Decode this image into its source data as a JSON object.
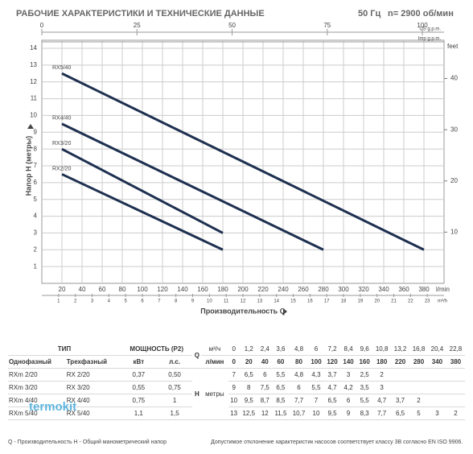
{
  "header": {
    "title": "РАБОЧИЕ ХАРАКТЕРИСТИКИ И ТЕХНИЧЕСКИЕ ДАННЫЕ",
    "frequency": "50 Гц",
    "speed": "n= 2900 об/мин"
  },
  "chart_data": {
    "type": "line",
    "x_label": "Производительность Q",
    "y_label": "Напор H (метры)",
    "x_unit": "l/min",
    "xlim": [
      0,
      400
    ],
    "xticks": [
      20,
      40,
      60,
      80,
      100,
      120,
      140,
      160,
      180,
      200,
      220,
      240,
      260,
      280,
      300,
      320,
      340,
      360,
      380
    ],
    "ylim": [
      0,
      14
    ],
    "yticks": [
      1,
      2,
      3,
      4,
      5,
      6,
      7,
      8,
      9,
      10,
      11,
      12,
      13,
      14
    ],
    "y2_label": "feet",
    "y2lim": [
      0,
      45.9
    ],
    "y2ticks": [
      10,
      20,
      30,
      40
    ],
    "us_gpm": {
      "label": "US g.p.m.",
      "lim": [
        0,
        105.7
      ],
      "ticks": [
        0,
        25,
        50,
        75,
        100
      ]
    },
    "imp_gpm": {
      "label": "Imp g.p.m."
    },
    "m3h": {
      "label": "m³/h",
      "lim": [
        0,
        24
      ],
      "ticks": [
        1,
        2,
        3,
        4,
        5,
        6,
        7,
        8,
        9,
        10,
        11,
        12,
        13,
        14,
        15,
        16,
        17,
        18,
        19,
        20,
        21,
        22,
        23
      ]
    },
    "grid": true,
    "series": [
      {
        "name": "RX5/40",
        "color": "#1e3050",
        "x": [
          20,
          380
        ],
        "values": [
          12.5,
          2
        ]
      },
      {
        "name": "RX4/40",
        "color": "#1e3050",
        "x": [
          20,
          280
        ],
        "values": [
          9.5,
          2
        ]
      },
      {
        "name": "RX3/20",
        "color": "#1e3050",
        "x": [
          20,
          180
        ],
        "values": [
          8,
          3
        ]
      },
      {
        "name": "RX2/20",
        "color": "#1e3050",
        "x": [
          20,
          180
        ],
        "values": [
          6.5,
          2
        ]
      }
    ]
  },
  "table": {
    "type_header": "ТИП",
    "power_header": "МОЩНОСТЬ (P2)",
    "q_header": "Q",
    "m3h_header": "м³/ч",
    "lmin_header": "л/мин",
    "single_header": "Однофазный",
    "three_header": "Трехфазный",
    "kw_header": "кВт",
    "hp_header": "л.с.",
    "h_header": "H",
    "h_unit": "метры",
    "flow_m3h": [
      "0",
      "1,2",
      "2,4",
      "3,6",
      "4,8",
      "6",
      "7,2",
      "8,4",
      "9,6",
      "10,8",
      "13,2",
      "16,8",
      "20,4",
      "22,8"
    ],
    "flow_lmin": [
      "0",
      "20",
      "40",
      "60",
      "80",
      "100",
      "120",
      "140",
      "160",
      "180",
      "220",
      "280",
      "340",
      "380"
    ],
    "rows": [
      {
        "single": "RXm 2/20",
        "three": "RX 2/20",
        "kw": "0,37",
        "hp": "0,50",
        "heads": [
          "7",
          "6,5",
          "6",
          "5,5",
          "4,8",
          "4,3",
          "3,7",
          "3",
          "2,5",
          "2",
          null,
          null,
          null,
          null
        ]
      },
      {
        "single": "RXm 3/20",
        "three": "RX 3/20",
        "kw": "0,55",
        "hp": "0,75",
        "heads": [
          "9",
          "8",
          "7,5",
          "6,5",
          "6",
          "5,5",
          "4,7",
          "4,2",
          "3,5",
          "3",
          null,
          null,
          null,
          null
        ]
      },
      {
        "single": "RXm 4/40",
        "three": "RX 4/40",
        "kw": "0,75",
        "hp": "1",
        "heads": [
          "10",
          "9,5",
          "8,7",
          "8,5",
          "7,7",
          "7",
          "6,5",
          "6",
          "5,5",
          "4,7",
          "3,7",
          "2",
          null,
          null
        ]
      },
      {
        "single": "RXm 5/40",
        "three": "RX 5/40",
        "kw": "1,1",
        "hp": "1,5",
        "heads": [
          "13",
          "12,5",
          "12",
          "11,5",
          "10,7",
          "10",
          "9,5",
          "9",
          "8,3",
          "7,7",
          "6,5",
          "5",
          "3",
          "2"
        ]
      }
    ]
  },
  "footnotes": {
    "left": "Q - Производительность   H - Общий манометрический напор",
    "right": "Допустимое отклонение характеристик насосов соответствует классу 3В согласно EN ISO 9906."
  },
  "watermark": "termokit"
}
